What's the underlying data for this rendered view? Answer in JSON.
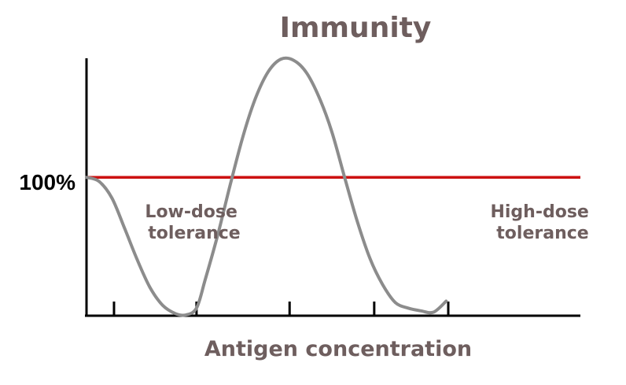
{
  "colors": {
    "text": "#6e5e5e",
    "curve": "#8c8c8c",
    "reference": "#cc1111",
    "axis": "#000000",
    "label_100": "#000000"
  },
  "chart_data": {
    "type": "line",
    "title": "Immunity",
    "xlabel": "Antigen concentration",
    "ylabel": "",
    "reference_line": {
      "y": 100,
      "label": "100%"
    },
    "ylim": [
      0,
      190
    ],
    "xlim": [
      0,
      100
    ],
    "x_ticks": [
      6.5,
      26,
      48,
      68,
      85.5
    ],
    "annotations": [
      {
        "lines": [
          "Low-dose",
          "tolerance"
        ],
        "region": "low"
      },
      {
        "lines": [
          "High-dose",
          "tolerance"
        ],
        "region": "high"
      }
    ],
    "series": [
      {
        "x": [
          0,
          3,
          6,
          9,
          12,
          15,
          18,
          21,
          23.5,
          26,
          28,
          31,
          34,
          37,
          40,
          43,
          46,
          49,
          52,
          55,
          58,
          61,
          64,
          67,
          70,
          73,
          76,
          79,
          82,
          85
        ],
        "y": [
          100,
          97,
          85,
          63,
          40,
          20,
          7,
          1,
          0,
          5,
          25,
          58,
          95,
          130,
          158,
          177,
          186,
          185,
          176,
          158,
          133,
          100,
          68,
          41,
          22,
          9,
          5,
          3,
          2,
          10
        ]
      }
    ]
  }
}
